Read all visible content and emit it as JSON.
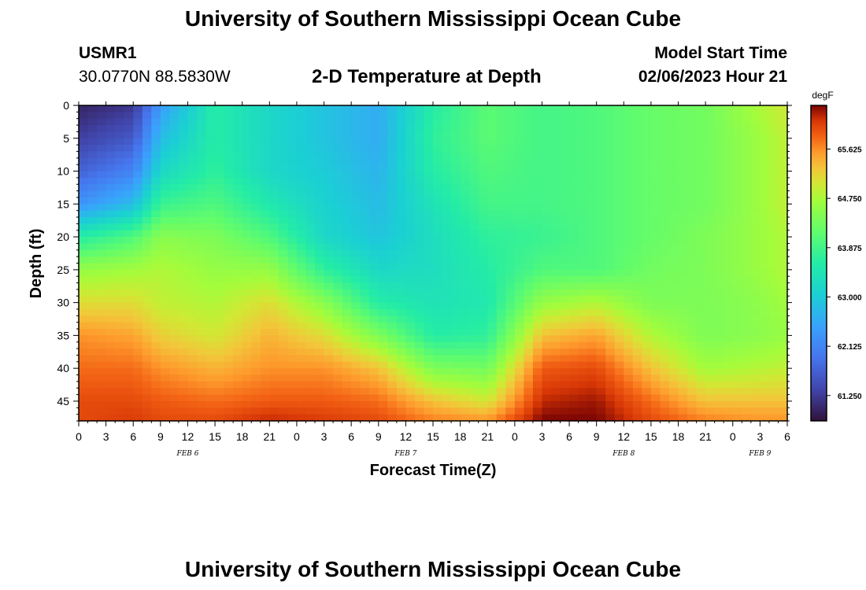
{
  "header": {
    "title": "University of Southern Mississippi Ocean Cube",
    "station_id": "USMR1",
    "coords": "30.0770N  88.5830W",
    "subtitle": "2-D Temperature at Depth",
    "model_label": "Model Start Time",
    "model_time": "02/06/2023 Hour 21"
  },
  "footer": {
    "title": "University of Southern Mississippi Ocean Cube"
  },
  "chart_data": {
    "type": "heatmap",
    "title": "2-D Temperature at Depth",
    "xlabel": "Forecast Time(Z)",
    "ylabel": "Depth (ft)",
    "x_range_hours": [
      0,
      78
    ],
    "y_range_ft": [
      0,
      48
    ],
    "x_tick_labels": [
      "0",
      "3",
      "6",
      "9",
      "12",
      "15",
      "18",
      "21",
      "0",
      "3",
      "6",
      "9",
      "12",
      "15",
      "18",
      "21",
      "0",
      "3",
      "6",
      "9",
      "12",
      "15",
      "18",
      "21",
      "0",
      "3",
      "6"
    ],
    "y_ticks": [
      0,
      5,
      10,
      15,
      20,
      25,
      30,
      35,
      40,
      45
    ],
    "date_labels": [
      {
        "hour": 12,
        "label": "FEB 6"
      },
      {
        "hour": 36,
        "label": "FEB 7"
      },
      {
        "hour": 60,
        "label": "FEB 8"
      },
      {
        "hour": 75,
        "label": "FEB 9"
      }
    ],
    "colorbar": {
      "unit": "degF",
      "min": 60.8,
      "max": 66.4,
      "ticks": [
        "61.250",
        "62.125",
        "63.000",
        "63.875",
        "64.750",
        "65.625"
      ]
    },
    "temperature_profiles_degF": {
      "depths_ft": [
        0,
        5,
        10,
        15,
        20,
        25,
        30,
        35,
        40,
        45,
        48
      ],
      "columns": [
        {
          "hour": 0,
          "values": [
            61.0,
            61.3,
            61.7,
            62.3,
            63.6,
            64.6,
            65.1,
            65.6,
            65.8,
            66.0,
            66.0
          ]
        },
        {
          "hour": 6,
          "values": [
            61.2,
            61.6,
            62.1,
            62.8,
            64.0,
            64.7,
            65.1,
            65.5,
            65.8,
            66.0,
            66.1
          ]
        },
        {
          "hour": 9,
          "values": [
            62.4,
            62.8,
            63.2,
            63.8,
            64.5,
            64.8,
            64.9,
            65.2,
            65.6,
            65.9,
            66.0
          ]
        },
        {
          "hour": 15,
          "values": [
            63.6,
            63.6,
            63.7,
            64.0,
            64.4,
            64.6,
            64.8,
            65.0,
            65.4,
            65.8,
            66.0
          ]
        },
        {
          "hour": 21,
          "values": [
            63.2,
            63.2,
            63.2,
            63.5,
            64.0,
            64.6,
            65.1,
            65.4,
            65.6,
            65.9,
            66.2
          ]
        },
        {
          "hour": 27,
          "values": [
            62.9,
            62.9,
            63.0,
            63.1,
            63.2,
            63.7,
            64.5,
            65.1,
            65.6,
            65.9,
            66.1
          ]
        },
        {
          "hour": 33,
          "values": [
            62.6,
            62.6,
            62.7,
            62.8,
            62.9,
            63.2,
            63.6,
            64.4,
            65.3,
            65.8,
            66.0
          ]
        },
        {
          "hour": 39,
          "values": [
            63.6,
            63.7,
            63.6,
            63.4,
            63.3,
            63.3,
            63.4,
            63.6,
            64.4,
            65.3,
            65.7
          ]
        },
        {
          "hour": 45,
          "values": [
            64.1,
            64.1,
            64.0,
            63.9,
            63.7,
            63.6,
            63.5,
            63.7,
            64.3,
            65.0,
            65.6
          ]
        },
        {
          "hour": 51,
          "values": [
            63.9,
            63.9,
            63.9,
            63.9,
            63.8,
            64.0,
            64.6,
            65.3,
            65.9,
            66.2,
            66.4
          ]
        },
        {
          "hour": 57,
          "values": [
            64.0,
            64.0,
            64.0,
            64.0,
            64.0,
            64.0,
            64.8,
            65.5,
            66.0,
            66.3,
            66.4
          ]
        },
        {
          "hour": 63,
          "values": [
            64.2,
            64.2,
            64.2,
            64.2,
            64.2,
            64.3,
            64.4,
            64.8,
            65.3,
            65.8,
            66.0
          ]
        },
        {
          "hour": 69,
          "values": [
            64.3,
            64.3,
            64.3,
            64.3,
            64.4,
            64.4,
            64.4,
            64.4,
            64.7,
            65.3,
            65.7
          ]
        },
        {
          "hour": 74,
          "values": [
            64.7,
            64.6,
            64.6,
            64.6,
            64.6,
            64.6,
            64.5,
            64.5,
            64.8,
            65.3,
            65.6
          ]
        },
        {
          "hour": 78,
          "values": [
            65.0,
            64.9,
            64.9,
            64.9,
            64.8,
            64.8,
            64.7,
            64.6,
            64.9,
            65.3,
            65.6
          ]
        }
      ]
    }
  }
}
